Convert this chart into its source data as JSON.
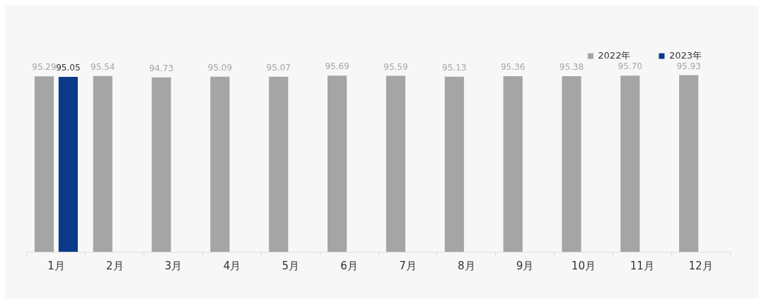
{
  "chart_data": {
    "type": "bar",
    "categories": [
      "1月",
      "2月",
      "3月",
      "4月",
      "5月",
      "6月",
      "7月",
      "8月",
      "9月",
      "10月",
      "11月",
      "12月"
    ],
    "series": [
      {
        "name": "2022年",
        "color": "#a5a5a5",
        "values": [
          95.29,
          95.54,
          94.73,
          95.09,
          95.07,
          95.69,
          95.59,
          95.13,
          95.36,
          95.38,
          95.7,
          95.93
        ],
        "value_labels": [
          "95.29",
          "95.54",
          "94.73",
          "95.09",
          "95.07",
          "95.69",
          "95.59",
          "95.13",
          "95.36",
          "95.38",
          "95.70",
          "95.93"
        ]
      },
      {
        "name": "2023年",
        "color": "#0b3a8a",
        "values": [
          95.05,
          null,
          null,
          null,
          null,
          null,
          null,
          null,
          null,
          null,
          null,
          null
        ],
        "value_labels": [
          "95.05",
          null,
          null,
          null,
          null,
          null,
          null,
          null,
          null,
          null,
          null,
          null
        ]
      }
    ],
    "grid": false,
    "legend": "top right"
  }
}
